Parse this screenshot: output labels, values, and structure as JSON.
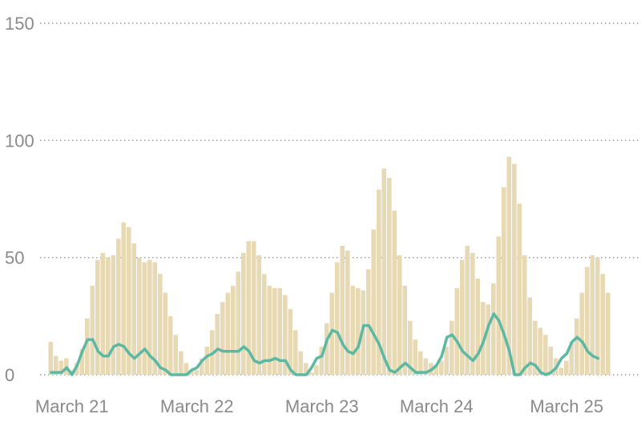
{
  "chart_data": {
    "type": "bar",
    "title": "",
    "xlabel": "",
    "ylabel": "",
    "ylim": [
      0,
      150
    ],
    "yticks": [
      "0",
      "50",
      "100",
      "150"
    ],
    "ytick_values": [
      0,
      50,
      100,
      150
    ],
    "grid": "horizontal dotted",
    "x_start": "March 21",
    "x_end": "March 25",
    "xticks": [
      "March 21",
      "March 22",
      "March 23",
      "March 24",
      "March 25"
    ],
    "xtick_index": [
      4,
      28,
      52,
      74,
      99
    ],
    "colors": {
      "bars": "#e8d9b5",
      "line": "#5bb8a3",
      "grid": "#999999",
      "text": "#8a8a8a"
    },
    "series": [
      {
        "type": "bar",
        "values": [
          14,
          8,
          6,
          7,
          2,
          5,
          11,
          24,
          38,
          49,
          52,
          50,
          51,
          58,
          65,
          63,
          56,
          50,
          48,
          49,
          48,
          43,
          35,
          25,
          17,
          10,
          5,
          2,
          2,
          7,
          12,
          19,
          26,
          31,
          35,
          38,
          44,
          52,
          57,
          57,
          51,
          43,
          38,
          37,
          37,
          34,
          28,
          19,
          10,
          5,
          1,
          4,
          12,
          22,
          35,
          48,
          55,
          53,
          38,
          37,
          36,
          45,
          62,
          79,
          88,
          84,
          70,
          51,
          38,
          23,
          15,
          10,
          7,
          5,
          4,
          6,
          12,
          23,
          37,
          49,
          55,
          52,
          41,
          31,
          30,
          39,
          59,
          80,
          93,
          90,
          73,
          51,
          33,
          23,
          20,
          17,
          12,
          7,
          3,
          6,
          14,
          24,
          35,
          46,
          51,
          50,
          43,
          35
        ]
      },
      {
        "type": "line",
        "values": [
          1,
          1,
          1,
          3,
          0,
          4,
          10,
          15,
          15,
          10,
          8,
          8,
          12,
          13,
          12,
          9,
          7,
          9,
          11,
          8,
          6,
          3,
          2,
          0,
          0,
          0,
          0,
          2,
          3,
          6,
          8,
          9,
          11,
          10,
          10,
          10,
          10,
          12,
          10,
          6,
          5,
          6,
          6,
          7,
          6,
          6,
          2,
          0,
          0,
          0,
          3,
          7,
          8,
          15,
          19,
          18,
          13,
          10,
          9,
          12,
          21,
          21,
          17,
          13,
          7,
          2,
          1,
          3,
          5,
          3,
          1,
          1,
          1,
          2,
          4,
          8,
          16,
          17,
          14,
          10,
          8,
          6,
          9,
          14,
          21,
          26,
          23,
          17,
          10,
          0,
          0,
          3,
          5,
          4,
          1,
          0,
          1,
          3,
          7,
          9,
          14,
          16,
          14,
          10,
          8,
          7
        ]
      }
    ]
  }
}
